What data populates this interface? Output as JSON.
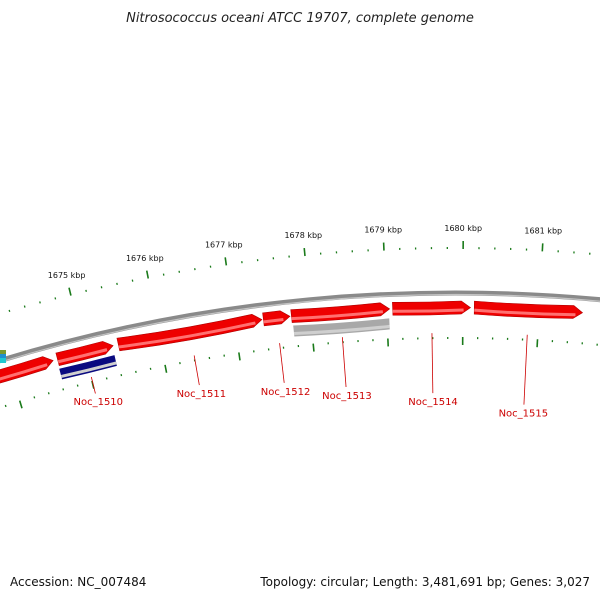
{
  "title": "Nitrosococcus oceani ATCC 19707, complete genome",
  "footer": {
    "accession": "Accession: NC_007484",
    "summary": "Topology: circular; Length: 3,481,691 bp; Genes: 3,027"
  },
  "colors": {
    "forward_gene": "#ee0000",
    "reverse_gene": "#ee0000",
    "backbone": "#8a8a8a",
    "tick": "#1a7a1a",
    "label_line": "#cc0000",
    "label_text": "#cc0000",
    "gray_feature": "#a8a8a8",
    "navy_feature": "#0a0a80"
  },
  "scale_labels": [
    {
      "text": "1681 kbp",
      "kbp": 1681
    },
    {
      "text": "1680 kbp",
      "kbp": 1680
    },
    {
      "text": "1679 kbp",
      "kbp": 1679
    },
    {
      "text": "1678 kbp",
      "kbp": 1678
    },
    {
      "text": "1677 kbp",
      "kbp": 1677
    },
    {
      "text": "1676 kbp",
      "kbp": 1676
    },
    {
      "text": "1675 kbp",
      "kbp": 1675
    }
  ],
  "genes": [
    {
      "label": "Noc_1515",
      "strand": "-",
      "start_kbp": 1681.57,
      "end_kbp": 1680.15
    },
    {
      "label": "Noc_1514",
      "strand": "-",
      "start_kbp": 1680.1,
      "end_kbp": 1679.08
    },
    {
      "label": "Noc_1513",
      "strand": "-",
      "start_kbp": 1679.04,
      "end_kbp": 1677.75
    },
    {
      "label": "Noc_1512",
      "strand": "-",
      "start_kbp": 1677.73,
      "end_kbp": 1677.38
    },
    {
      "label": "Noc_1511",
      "strand": "-",
      "start_kbp": 1677.36,
      "end_kbp": 1675.45
    },
    {
      "label": "Noc_1510",
      "strand": "-",
      "start_kbp": 1675.38,
      "end_kbp": 1674.63
    },
    {
      "label": "",
      "strand": "-",
      "start_kbp": 1674.57,
      "end_kbp": 1673.6
    }
  ],
  "extra_features": [
    {
      "kind": "gray",
      "start_kbp": 1679.03,
      "end_kbp": 1677.76
    },
    {
      "kind": "navy",
      "start_kbp": 1675.37,
      "end_kbp": 1674.62
    }
  ]
}
